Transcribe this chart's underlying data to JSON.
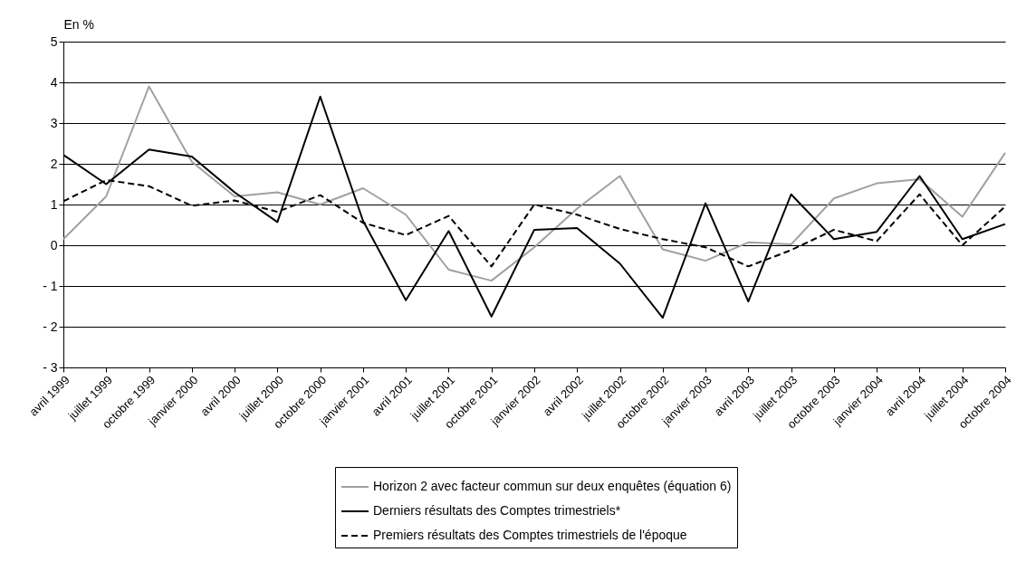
{
  "chart_data": {
    "type": "line",
    "ylabel": "En %",
    "categories": [
      "avril 1999",
      "juillet 1999",
      "octobre 1999",
      "janvier 2000",
      "avril 2000",
      "juillet 2000",
      "octobre 2000",
      "janvier 2001",
      "avril 2001",
      "juillet 2001",
      "octobre 2001",
      "janvier 2002",
      "avril 2002",
      "juillet 2002",
      "octobre 2002",
      "janvier 2003",
      "avril 2003",
      "juillet 2003",
      "octobre 2003",
      "janvier 2004",
      "avril 2004",
      "juillet 2004",
      "octobre 2004"
    ],
    "series": [
      {
        "name": "Horizon 2 avec facteur commun sur deux enquêtes (équation 6)",
        "color": "#a0a0a0",
        "line_style": "solid",
        "values": [
          0.15,
          1.2,
          3.9,
          2.05,
          1.2,
          1.3,
          1.0,
          1.4,
          0.75,
          -0.6,
          -0.87,
          -0.05,
          0.9,
          1.7,
          -0.1,
          -0.38,
          0.07,
          0.02,
          1.15,
          1.52,
          1.62,
          0.7,
          2.27
        ]
      },
      {
        "name": "Derniers résultats des Comptes trimestriels*",
        "color": "#000000",
        "line_style": "solid",
        "values": [
          2.22,
          1.5,
          2.35,
          2.18,
          1.3,
          0.57,
          3.65,
          0.6,
          -1.35,
          0.35,
          -1.75,
          0.38,
          0.42,
          -0.45,
          -1.78,
          1.03,
          -1.38,
          1.25,
          0.15,
          0.33,
          1.7,
          0.15,
          0.52
        ]
      },
      {
        "name": "Premiers résultats des Comptes trimestriels de l'époque",
        "color": "#000000",
        "line_style": "dashed",
        "values": [
          1.08,
          1.6,
          1.45,
          0.97,
          1.1,
          0.82,
          1.23,
          0.55,
          0.25,
          0.72,
          -0.52,
          1.0,
          0.75,
          0.4,
          0.15,
          -0.05,
          -0.52,
          -0.12,
          0.38,
          0.1,
          1.25,
          0.0,
          0.95
        ]
      }
    ],
    "ylim": [
      -3,
      5
    ],
    "yticks": [
      {
        "value": -3,
        "label": "- 3"
      },
      {
        "value": -2,
        "label": "- 2"
      },
      {
        "value": -1,
        "label": "- 1"
      },
      0,
      1,
      2,
      3,
      4,
      5
    ],
    "grid": "y",
    "legend": "bottom",
    "marker": "none"
  }
}
